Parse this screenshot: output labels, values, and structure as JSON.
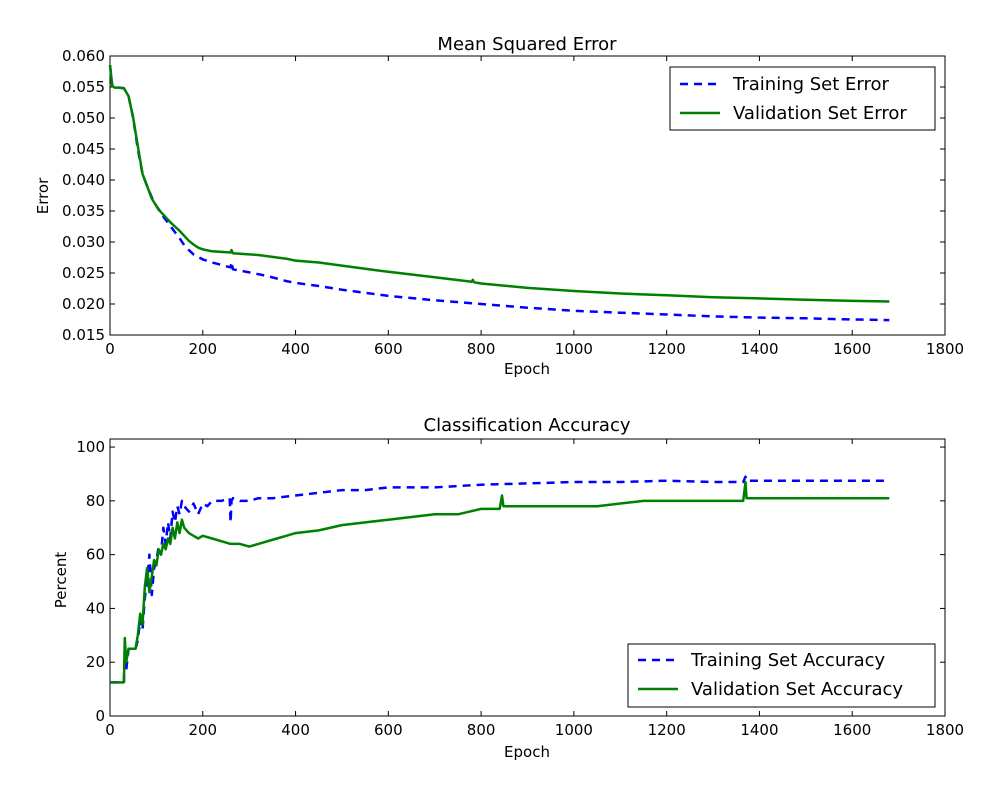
{
  "chart_data": [
    {
      "type": "line",
      "title": "Mean Squared Error",
      "xlabel": "Epoch",
      "ylabel": "Error",
      "xlim": [
        0,
        1800
      ],
      "ylim": [
        0.015,
        0.06
      ],
      "xticks": [
        0,
        200,
        400,
        600,
        800,
        1000,
        1200,
        1400,
        1600,
        1800
      ],
      "yticks": [
        0.015,
        0.02,
        0.025,
        0.03,
        0.035,
        0.04,
        0.045,
        0.05,
        0.055,
        0.06
      ],
      "ytick_labels": [
        "0.015",
        "0.020",
        "0.025",
        "0.030",
        "0.035",
        "0.040",
        "0.045",
        "0.050",
        "0.055",
        "0.060"
      ],
      "grid": false,
      "legend_position": "top-right",
      "series": [
        {
          "name": "Training Set Error",
          "color": "#0000ff",
          "style": "dashed",
          "x": [
            0,
            2,
            5,
            10,
            20,
            30,
            40,
            50,
            60,
            70,
            80,
            90,
            100,
            110,
            120,
            130,
            140,
            150,
            160,
            170,
            180,
            190,
            200,
            220,
            240,
            260,
            262,
            265,
            280,
            300,
            320,
            340,
            360,
            380,
            400,
            450,
            500,
            550,
            600,
            700,
            800,
            900,
            1000,
            1100,
            1200,
            1300,
            1400,
            1500,
            1600,
            1680
          ],
          "y": [
            0.0585,
            0.0572,
            0.0552,
            0.0549,
            0.0549,
            0.0548,
            0.0535,
            0.05,
            0.045,
            0.041,
            0.039,
            0.0372,
            0.0358,
            0.0346,
            0.0336,
            0.0326,
            0.0316,
            0.0306,
            0.0295,
            0.0287,
            0.028,
            0.0276,
            0.0272,
            0.0267,
            0.0263,
            0.0259,
            0.0268,
            0.0256,
            0.0254,
            0.0251,
            0.0248,
            0.0245,
            0.0241,
            0.0237,
            0.0234,
            0.0229,
            0.0223,
            0.0218,
            0.0213,
            0.0206,
            0.02,
            0.0194,
            0.0189,
            0.0186,
            0.0183,
            0.018,
            0.0178,
            0.0177,
            0.0175,
            0.0174
          ]
        },
        {
          "name": "Validation Set Error",
          "color": "#008000",
          "style": "solid",
          "x": [
            0,
            2,
            5,
            10,
            20,
            30,
            40,
            50,
            60,
            70,
            80,
            90,
            100,
            110,
            120,
            130,
            140,
            150,
            160,
            170,
            180,
            190,
            200,
            220,
            240,
            260,
            262,
            265,
            280,
            300,
            320,
            340,
            360,
            380,
            400,
            450,
            500,
            550,
            600,
            700,
            780,
            782,
            785,
            800,
            900,
            1000,
            1100,
            1200,
            1300,
            1400,
            1500,
            1600,
            1680
          ],
          "y": [
            0.0585,
            0.0572,
            0.0552,
            0.0549,
            0.0549,
            0.0548,
            0.0535,
            0.05,
            0.0455,
            0.041,
            0.039,
            0.037,
            0.0358,
            0.0348,
            0.034,
            0.0332,
            0.0325,
            0.0318,
            0.031,
            0.0302,
            0.0296,
            0.0291,
            0.0288,
            0.0285,
            0.0284,
            0.0283,
            0.0287,
            0.0282,
            0.0281,
            0.028,
            0.0279,
            0.0277,
            0.0275,
            0.0273,
            0.027,
            0.0267,
            0.0262,
            0.0257,
            0.0252,
            0.0243,
            0.0236,
            0.0239,
            0.0235,
            0.0233,
            0.0226,
            0.0221,
            0.0217,
            0.0214,
            0.0211,
            0.0209,
            0.0207,
            0.0205,
            0.0204
          ]
        }
      ]
    },
    {
      "type": "line",
      "title": "Classification Accuracy",
      "xlabel": "Epoch",
      "ylabel": "Percent",
      "xlim": [
        0,
        1800
      ],
      "ylim": [
        0,
        103
      ],
      "xticks": [
        0,
        200,
        400,
        600,
        800,
        1000,
        1200,
        1400,
        1600,
        1800
      ],
      "yticks": [
        0,
        20,
        40,
        60,
        80,
        100
      ],
      "ytick_labels": [
        "0",
        "20",
        "40",
        "60",
        "80",
        "100"
      ],
      "grid": false,
      "legend_position": "bottom-right",
      "series": [
        {
          "name": "Training Set Accuracy",
          "color": "#0000ff",
          "style": "dashed",
          "x": [
            0,
            10,
            20,
            30,
            32,
            35,
            40,
            45,
            50,
            55,
            60,
            65,
            70,
            75,
            80,
            85,
            90,
            95,
            100,
            105,
            110,
            115,
            120,
            125,
            130,
            135,
            140,
            145,
            150,
            155,
            160,
            170,
            180,
            190,
            200,
            210,
            220,
            240,
            258,
            260,
            262,
            265,
            280,
            300,
            320,
            350,
            400,
            450,
            500,
            550,
            600,
            700,
            800,
            900,
            1000,
            1100,
            1200,
            1300,
            1365,
            1370,
            1372,
            1375,
            1400,
            1500,
            1600,
            1680
          ],
          "y": [
            12.5,
            12.5,
            12.5,
            12.5,
            25,
            17,
            25,
            25,
            25,
            25,
            28,
            36,
            32,
            44,
            50,
            60,
            45,
            55,
            58,
            63,
            60,
            70,
            64,
            72,
            66,
            76,
            72,
            78,
            75,
            80,
            78,
            76,
            79,
            75,
            79,
            78,
            80,
            80,
            81,
            72,
            80,
            81,
            80,
            80,
            81,
            81,
            82,
            83,
            84,
            84,
            85,
            85,
            86,
            86.5,
            87,
            87,
            87.5,
            87,
            87,
            89,
            87.5,
            87.5,
            87.5,
            87.5,
            87.5,
            87.5
          ]
        },
        {
          "name": "Validation Set Accuracy",
          "color": "#008000",
          "style": "solid",
          "x": [
            0,
            10,
            20,
            30,
            32,
            35,
            40,
            45,
            50,
            55,
            60,
            65,
            70,
            75,
            80,
            85,
            90,
            95,
            100,
            105,
            110,
            115,
            120,
            125,
            130,
            135,
            140,
            145,
            150,
            155,
            160,
            170,
            180,
            190,
            200,
            220,
            240,
            260,
            280,
            300,
            320,
            340,
            360,
            380,
            400,
            450,
            500,
            550,
            600,
            650,
            700,
            750,
            800,
            840,
            845,
            848,
            852,
            860,
            900,
            950,
            1000,
            1050,
            1100,
            1150,
            1200,
            1300,
            1365,
            1370,
            1372,
            1375,
            1400,
            1500,
            1600,
            1680
          ],
          "y": [
            12.5,
            12.5,
            12.5,
            12.5,
            29,
            20,
            25,
            25,
            25,
            25,
            30,
            38,
            34,
            48,
            55,
            46,
            52,
            58,
            56,
            62,
            60,
            64,
            62,
            66,
            64,
            70,
            66,
            72,
            68,
            73,
            70,
            68,
            67,
            66,
            67,
            66,
            65,
            64,
            64,
            63,
            64,
            65,
            66,
            67,
            68,
            69,
            71,
            72,
            73,
            74,
            75,
            75,
            77,
            77,
            82,
            78,
            78,
            78,
            78,
            78,
            78,
            78,
            79,
            80,
            80,
            80,
            80,
            87,
            81,
            81,
            81,
            81,
            81,
            81
          ]
        }
      ]
    }
  ]
}
